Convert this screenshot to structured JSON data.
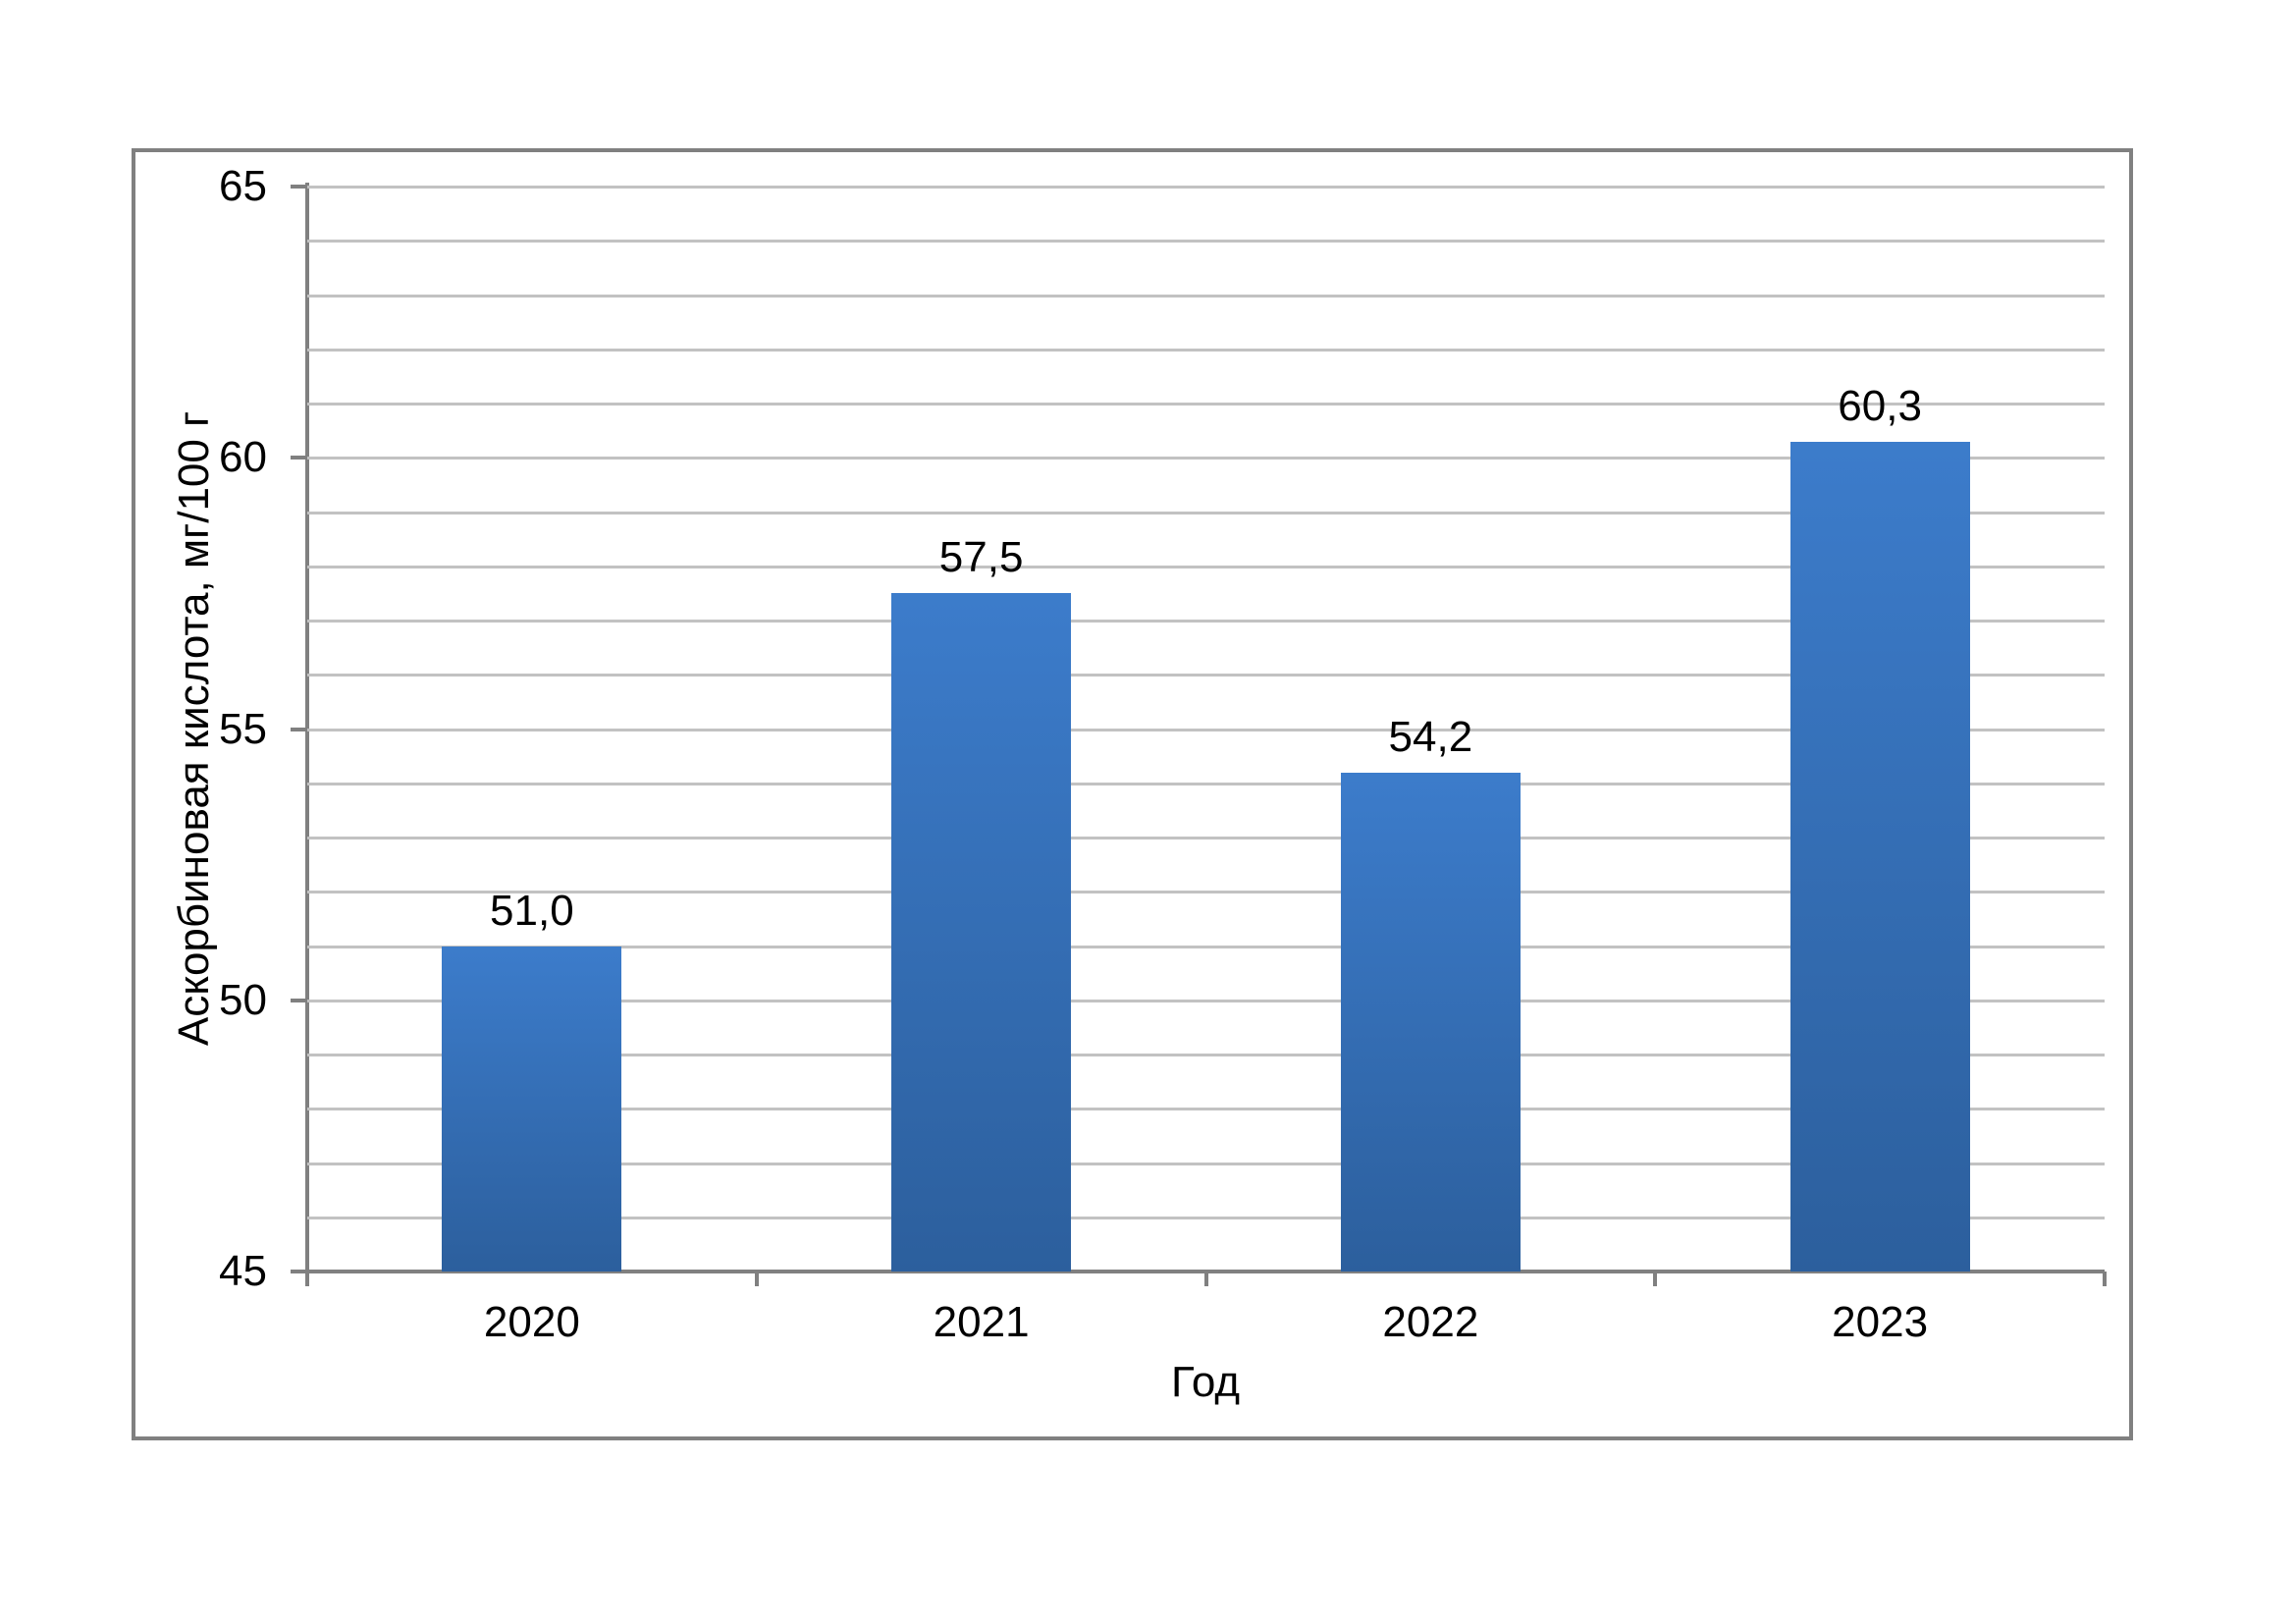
{
  "figure": {
    "background": "#FFFFFF",
    "border_color": "#808080"
  },
  "chart_data": {
    "type": "bar",
    "categories": [
      "2020",
      "2021",
      "2022",
      "2023"
    ],
    "values": [
      51.0,
      57.5,
      54.2,
      60.3
    ],
    "value_labels": [
      "51,0",
      "57,5",
      "54,2",
      "60,3"
    ],
    "title": "",
    "xlabel": "Год",
    "ylabel": "Аскорбиновая кислота, мг/100 г",
    "ylim": [
      45,
      65
    ],
    "y_major_step": 5,
    "y_minor_step": 1,
    "y_tick_labels": [
      "45",
      "50",
      "55",
      "60",
      "65"
    ],
    "grid": "horizontal minor gridlines every 1 unit, no vertical gridlines",
    "legend": "none",
    "colors": {
      "bar_gradient_top": "#3C7CCB",
      "bar_gradient_bottom": "#2C5F9D",
      "gridline": "#C2C2C2",
      "axis": "#808080",
      "text": "#000000"
    }
  }
}
